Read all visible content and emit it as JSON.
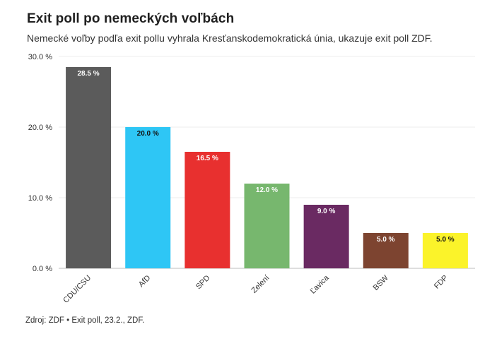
{
  "title": "Exit poll po nemeckých voľbách",
  "subtitle": "Nemecké voľby podľa exit pollu vyhrala Kresťanskodemokratická únia, ukazuje exit poll ZDF.",
  "source": "Zdroj: ZDF • Exit poll, 23.2., ZDF.",
  "chart_data": {
    "type": "bar",
    "title": "Exit poll po nemeckých voľbách",
    "xlabel": "",
    "ylabel": "",
    "ylim": [
      0,
      30
    ],
    "yticks": [
      0,
      10,
      20,
      30
    ],
    "ytick_labels": [
      "0.0 %",
      "10.0 %",
      "20.0 %",
      "30.0 %"
    ],
    "grid": true,
    "categories": [
      "CDU/CSU",
      "AfD",
      "SPD",
      "Zelení",
      "Ľavica",
      "BSW",
      "FDP"
    ],
    "values": [
      28.5,
      20.0,
      16.5,
      12.0,
      9.0,
      5.0,
      5.0
    ],
    "data_labels": [
      "28.5 %",
      "20.0 %",
      "16.5 %",
      "12.0 %",
      "9.0 %",
      "5.0 %",
      "5.0 %"
    ],
    "colors": [
      "#5b5b5b",
      "#2ec6f5",
      "#e8302f",
      "#77b76e",
      "#6a2a62",
      "#7d4430",
      "#fbf32a"
    ],
    "label_colors": [
      "#ffffff",
      "#111111",
      "#ffffff",
      "#ffffff",
      "#ffffff",
      "#ffffff",
      "#111111"
    ]
  }
}
